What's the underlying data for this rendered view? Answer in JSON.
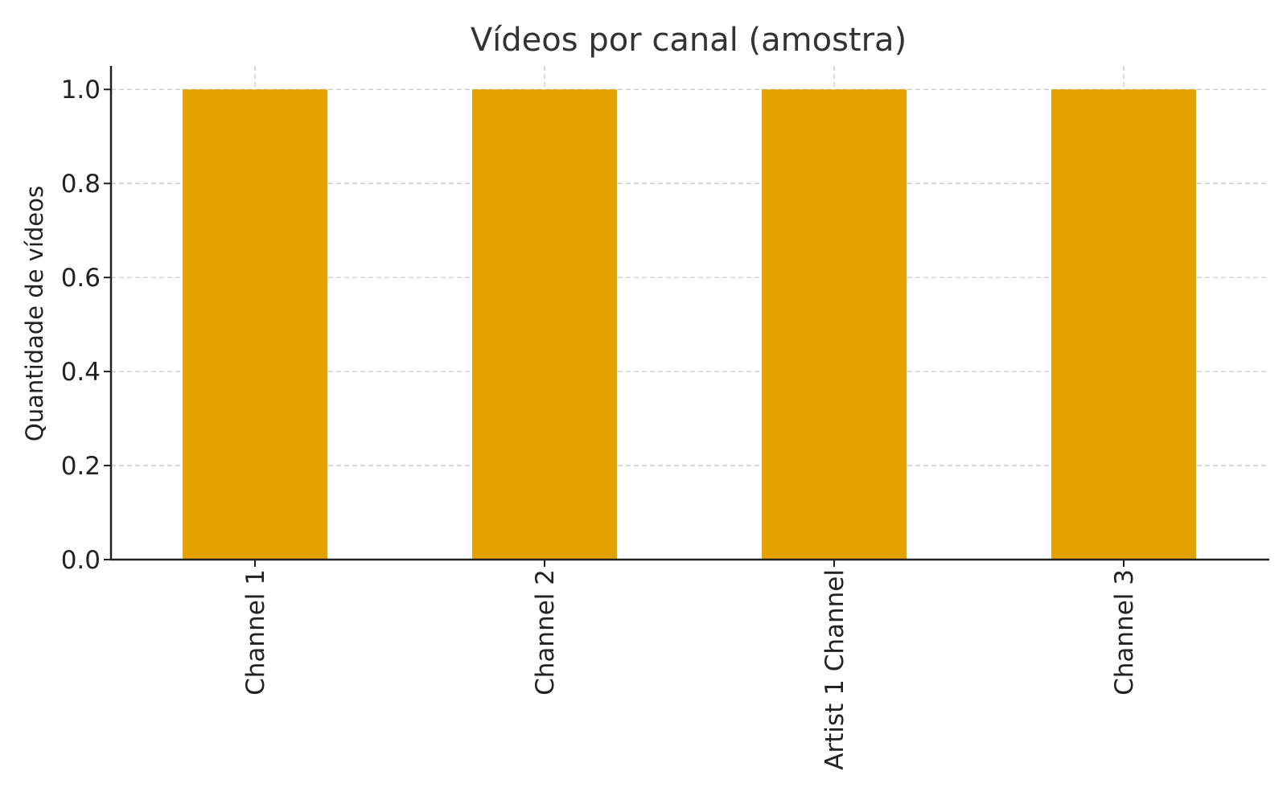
{
  "chart_data": {
    "type": "bar",
    "title": "Vídeos por canal (amostra)",
    "xlabel": "",
    "ylabel": "Quantidade de vídeos",
    "categories": [
      "Channel 1",
      "Channel 2",
      "Artist 1 Channel",
      "Channel 3"
    ],
    "values": [
      1,
      1,
      1,
      1
    ],
    "ylim": [
      0,
      1.05
    ],
    "yticks": [
      "0.0",
      "0.2",
      "0.4",
      "0.6",
      "0.8",
      "1.0"
    ],
    "grid": true,
    "legend": "none",
    "bar_color": "#E5A100"
  }
}
